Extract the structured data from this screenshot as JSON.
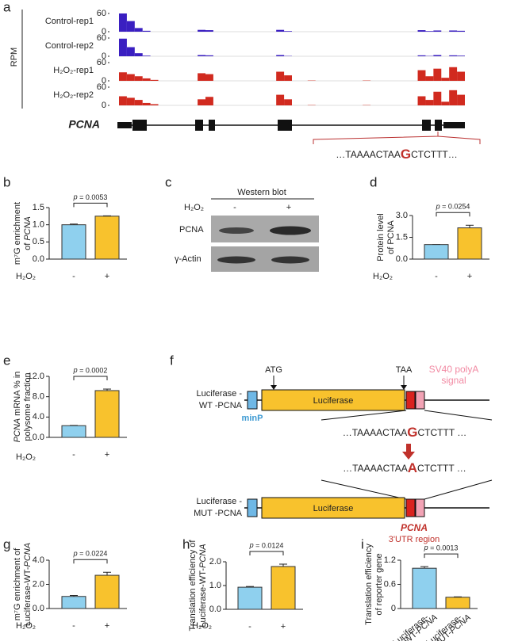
{
  "panel_letters": [
    "a",
    "b",
    "c",
    "d",
    "e",
    "f",
    "g",
    "h",
    "i"
  ],
  "tracks": {
    "axis_label": "RPM",
    "ylim": [
      0,
      60
    ],
    "yticks": [
      0,
      60
    ],
    "series": [
      {
        "name": "Control-rep1",
        "color": "#3a1fc1",
        "values": [
          60,
          35,
          12,
          3,
          0,
          0,
          0,
          0,
          0,
          0,
          6,
          5,
          0,
          0,
          0,
          0,
          0,
          0,
          0,
          0,
          6,
          2,
          0,
          0,
          0,
          0,
          0,
          0,
          0,
          0,
          0,
          0,
          0,
          0,
          0,
          0,
          0,
          0,
          5,
          2,
          4,
          0,
          4,
          3
        ]
      },
      {
        "name": "Control-rep2",
        "color": "#3a1fc1",
        "values": [
          58,
          30,
          10,
          2,
          0,
          0,
          0,
          0,
          0,
          0,
          4,
          3,
          0,
          0,
          0,
          0,
          0,
          0,
          0,
          0,
          4,
          1,
          0,
          0,
          0,
          0,
          0,
          0,
          0,
          0,
          0,
          0,
          0,
          0,
          0,
          0,
          0,
          0,
          3,
          1,
          4,
          0,
          3,
          2
        ]
      },
      {
        "name": "H₂O₂-rep1",
        "color": "#d12a1f",
        "values": [
          28,
          22,
          15,
          8,
          3,
          0,
          0,
          0,
          0,
          0,
          25,
          22,
          0,
          0,
          0,
          0,
          0,
          0,
          0,
          0,
          30,
          18,
          0,
          0,
          1,
          0,
          0,
          0,
          0,
          0,
          0,
          1,
          0,
          0,
          0,
          0,
          0,
          0,
          35,
          15,
          40,
          10,
          45,
          30
        ]
      },
      {
        "name": "H₂O₂-rep2",
        "color": "#d12a1f",
        "values": [
          30,
          25,
          18,
          8,
          4,
          0,
          0,
          0,
          0,
          0,
          20,
          28,
          0,
          0,
          0,
          0,
          0,
          0,
          0,
          0,
          35,
          20,
          0,
          0,
          1,
          0,
          0,
          0,
          0,
          0,
          0,
          1,
          0,
          0,
          0,
          0,
          0,
          0,
          30,
          18,
          45,
          12,
          50,
          35
        ]
      }
    ]
  },
  "gene": {
    "name": "PCNA",
    "sequence": [
      "…TAAAACTAA",
      "G",
      "CTCTTT…"
    ]
  },
  "western_blot": {
    "title": "Western blot",
    "condition": "H₂O₂",
    "lanes": [
      "-",
      "+"
    ],
    "bands": [
      "PCNA",
      "γ-Actin"
    ]
  },
  "construct": {
    "start_codon": "ATG",
    "stop_codon": "TAA",
    "signal": [
      "SV40 polyA",
      "signal"
    ],
    "promoter": "minP",
    "reporter": "Luciferase",
    "wt_label": [
      "Luciferase -",
      "WT -PCNA"
    ],
    "mut_label": [
      "Luciferase -",
      "MUT -PCNA"
    ],
    "wt_sequence": [
      "…TAAAACTAA",
      "G",
      "CTCTTT …"
    ],
    "mut_sequence": [
      "…TAAAACTAA",
      "A",
      "CTCTTT …"
    ],
    "region": [
      "PCNA",
      "3'UTR region"
    ]
  },
  "chart_data": [
    {
      "type": "bar",
      "ylabel": [
        "m⁷G enrichment",
        "of PCNA"
      ],
      "italic": "PCNA",
      "xlabel": "H₂O₂",
      "categories": [
        "-",
        "+"
      ],
      "values": [
        1.0,
        1.25
      ],
      "errors": [
        0.02,
        0.01
      ],
      "colors": [
        "#8fd0ee",
        "#f8c22d"
      ],
      "ylim": [
        0,
        1.5
      ],
      "yticks": [
        {
          "value": 0,
          "label": "0.0"
        },
        0.5,
        {
          "value": 1,
          "label": "1.0"
        },
        1.5
      ],
      "annotation": "p = 0.0053"
    },
    {
      "type": "bar",
      "ylabel": [
        "Protein level",
        "of PCNA"
      ],
      "italic": "",
      "xlabel": "H₂O₂",
      "categories": [
        "-",
        "+"
      ],
      "values": [
        1.0,
        2.15
      ],
      "errors": [
        0,
        0.18
      ],
      "colors": [
        "#8fd0ee",
        "#f8c22d"
      ],
      "ylim": [
        0,
        3
      ],
      "yticks": [
        {
          "value": 0,
          "label": "0.0"
        },
        1.5,
        {
          "value": 3,
          "label": "3.0"
        }
      ],
      "annotation": "p = 0.0254"
    },
    {
      "type": "bar",
      "ylabel": [
        "PCNA mRNA % in",
        "polysome fraction"
      ],
      "italic": "PCNA",
      "xlabel": "H₂O₂",
      "categories": [
        "-",
        "+"
      ],
      "values": [
        2.3,
        9.2
      ],
      "errors": [
        0.05,
        0.3
      ],
      "colors": [
        "#8fd0ee",
        "#f8c22d"
      ],
      "ylim": [
        0,
        12
      ],
      "yticks": [
        {
          "value": 0,
          "label": "0.0"
        },
        {
          "value": 4,
          "label": "4.0"
        },
        {
          "value": 8,
          "label": "8.0"
        },
        {
          "value": 12,
          "label": "12.0"
        }
      ],
      "annotation": "p = 0.0002"
    },
    {
      "type": "bar",
      "ylabel": [
        "m⁷G enrichment of",
        "Luciferase-WT-PCNA"
      ],
      "italic": "PCNA",
      "xlabel": "H₂O₂",
      "categories": [
        "-",
        "+"
      ],
      "values": [
        1.0,
        2.75
      ],
      "errors": [
        0.08,
        0.25
      ],
      "colors": [
        "#8fd0ee",
        "#f8c22d"
      ],
      "ylim": [
        0,
        4
      ],
      "yticks": [
        {
          "value": 0,
          "label": "0.0"
        },
        {
          "value": 2,
          "label": "2.0"
        },
        {
          "value": 4,
          "label": "4.0"
        }
      ],
      "annotation": "p = 0.0224"
    },
    {
      "type": "bar",
      "ylabel": [
        "Translation efficiency of",
        "Luciferase-WT-PCNA"
      ],
      "italic": "PCNA",
      "xlabel": "H₂O₂",
      "categories": [
        "-",
        "+"
      ],
      "values": [
        0.93,
        1.8
      ],
      "errors": [
        0.03,
        0.1
      ],
      "colors": [
        "#8fd0ee",
        "#f8c22d"
      ],
      "ylim": [
        0,
        2
      ],
      "yticks": [
        {
          "value": 0,
          "label": "0.0"
        },
        {
          "value": 1,
          "label": "1.0"
        },
        {
          "value": 2,
          "label": "2.0"
        }
      ],
      "annotation": "p = 0.0124"
    },
    {
      "type": "bar",
      "ylabel": [
        "Translation efficiency",
        "of reporter gene"
      ],
      "italic": "PCNA",
      "categories": [
        [
          "Luciferase-",
          "WT-PCNA"
        ],
        [
          "Luciferase-",
          "MUT-PCNA"
        ]
      ],
      "values": [
        1.0,
        0.28
      ],
      "errors": [
        0.04,
        0.01
      ],
      "colors": [
        "#8fd0ee",
        "#f8c22d"
      ],
      "ylim": [
        0,
        1.2
      ],
      "yticks": [
        0,
        0.6,
        1.2
      ],
      "annotation": "p = 0.0013"
    }
  ]
}
